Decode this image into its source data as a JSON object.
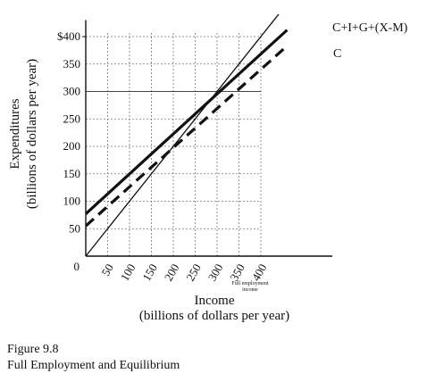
{
  "chart_data": {
    "type": "line",
    "xlabel": "Income",
    "xlabel_sub": "(billions of dollars per year)",
    "ylabel": "Expenditures",
    "ylabel_sub": "(billions of dollars per year)",
    "xlim": [
      0,
      460
    ],
    "ylim": [
      0,
      430
    ],
    "x_ticks": [
      50,
      100,
      150,
      200,
      250,
      300,
      350,
      400
    ],
    "x_tick_labels": [
      "50",
      "100",
      "150",
      "200",
      "250",
      "300",
      "350",
      "400"
    ],
    "y_ticks": [
      50,
      100,
      150,
      200,
      250,
      300,
      350,
      400
    ],
    "y_tick_labels": [
      "50",
      "100",
      "150",
      "200",
      "250",
      "300",
      "350",
      "$400"
    ],
    "origin_label": "0",
    "grid": true,
    "series": [
      {
        "name": "C+I+G+(X-M)",
        "x": [
          0,
          460
        ],
        "y": [
          77,
          412
        ],
        "style": "solid-thick",
        "color": "#111111"
      },
      {
        "name": "C",
        "x": [
          0,
          460
        ],
        "y": [
          55,
          383
        ],
        "style": "dashed-thick",
        "color": "#111111"
      },
      {
        "name": "",
        "x": [
          0,
          460
        ],
        "y": [
          0,
          460
        ],
        "style": "solid-thin",
        "color": "#111111"
      }
    ],
    "reference_line": {
      "y": 300,
      "x_range": [
        0,
        400
      ]
    },
    "annotation": {
      "text_line1": "Full employment",
      "text_line2": "income",
      "x": 400
    }
  },
  "caption": {
    "figure_number": "Figure 9.8",
    "title": "Full Employment and Equilibrium"
  }
}
